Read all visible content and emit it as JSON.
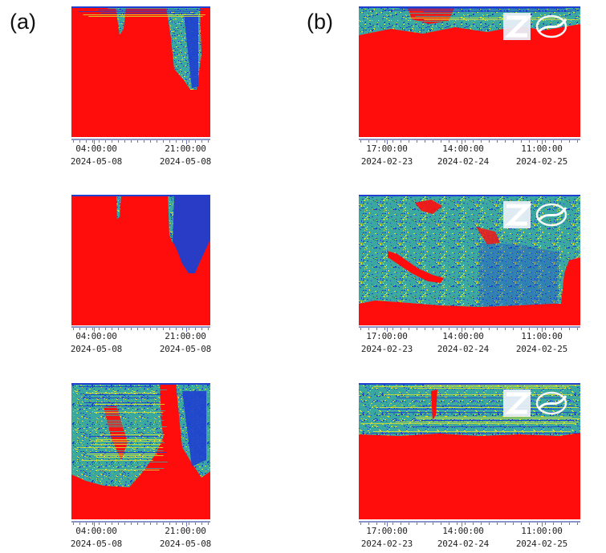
{
  "figure": {
    "panel_labels": [
      "(a)",
      "(b)"
    ]
  },
  "chart_data": [
    {
      "type": "heatmap",
      "panel": "(a)",
      "row": 1,
      "x_ticks": [
        {
          "time": "04:00:00",
          "date": "2024-05-08"
        },
        {
          "time": "21:00:00",
          "date": "2024-05-08"
        }
      ],
      "colors": {
        "background": "#ff0d0d",
        "low": "#1e3fd0",
        "mid": "#3aa7a0",
        "high": "#d8e030"
      }
    },
    {
      "type": "heatmap",
      "panel": "(a)",
      "row": 2,
      "x_ticks": [
        {
          "time": "04:00:00",
          "date": "2024-05-08"
        },
        {
          "time": "21:00:00",
          "date": "2024-05-08"
        }
      ],
      "colors": {
        "background": "#ff0d0d",
        "low": "#1e3fd0",
        "mid": "#3aa7a0",
        "high": "#d8e030"
      }
    },
    {
      "type": "heatmap",
      "panel": "(a)",
      "row": 3,
      "x_ticks": [
        {
          "time": "04:00:00",
          "date": "2024-05-08"
        },
        {
          "time": "21:00:00",
          "date": "2024-05-08"
        }
      ],
      "colors": {
        "background": "#ff0d0d",
        "low": "#1e3fd0",
        "mid": "#3aa7a0",
        "high": "#d8e030"
      }
    },
    {
      "type": "heatmap",
      "panel": "(b)",
      "row": 1,
      "x_ticks": [
        {
          "time": "17:00:00",
          "date": "2024-02-23"
        },
        {
          "time": "14:00:00",
          "date": "2024-02-24"
        },
        {
          "time": "11:00:00",
          "date": "2024-02-25"
        }
      ],
      "colors": {
        "background": "#ff0d0d",
        "low": "#1e3fd0",
        "mid": "#3aa7a0",
        "high": "#d8e030"
      }
    },
    {
      "type": "heatmap",
      "panel": "(b)",
      "row": 2,
      "x_ticks": [
        {
          "time": "17:00:00",
          "date": "2024-02-23"
        },
        {
          "time": "14:00:00",
          "date": "2024-02-24"
        },
        {
          "time": "11:00:00",
          "date": "2024-02-25"
        }
      ],
      "colors": {
        "background": "#ff0d0d",
        "low": "#1e3fd0",
        "mid": "#3aa7a0",
        "high": "#d8e030"
      }
    },
    {
      "type": "heatmap",
      "panel": "(b)",
      "row": 3,
      "x_ticks": [
        {
          "time": "17:00:00",
          "date": "2024-02-23"
        },
        {
          "time": "14:00:00",
          "date": "2024-02-24"
        },
        {
          "time": "11:00:00",
          "date": "2024-02-25"
        }
      ],
      "colors": {
        "background": "#ff0d0d",
        "low": "#1e3fd0",
        "mid": "#3aa7a0",
        "high": "#d8e030"
      }
    }
  ]
}
